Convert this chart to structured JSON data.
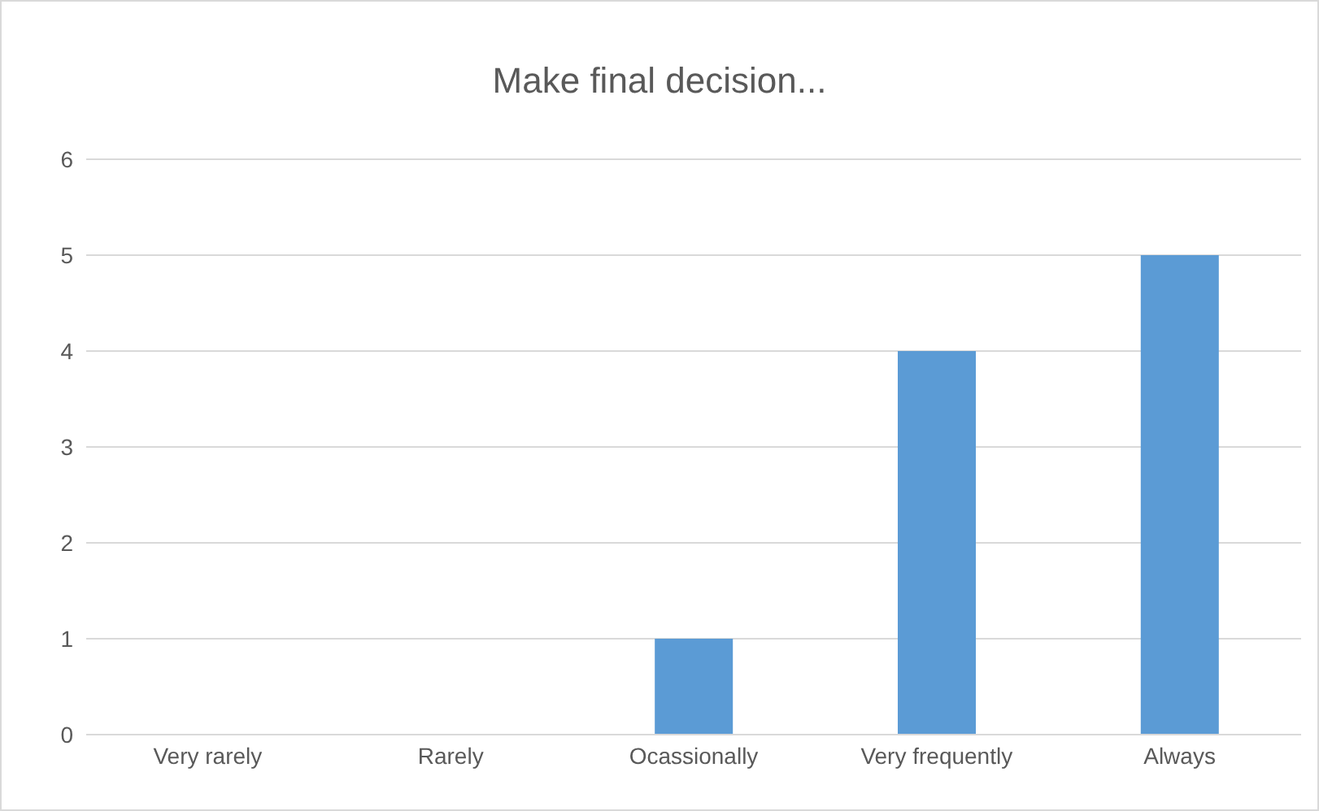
{
  "chart_data": {
    "type": "bar",
    "title": "Make final decision...",
    "categories": [
      "Very rarely",
      "Rarely",
      "Ocassionally",
      "Very frequently",
      "Always"
    ],
    "values": [
      0,
      0,
      1,
      4,
      5
    ],
    "color": "#5b9bd5",
    "ylim": [
      0,
      6
    ],
    "yticks": [
      0,
      1,
      2,
      3,
      4,
      5,
      6
    ],
    "grid": "y"
  }
}
